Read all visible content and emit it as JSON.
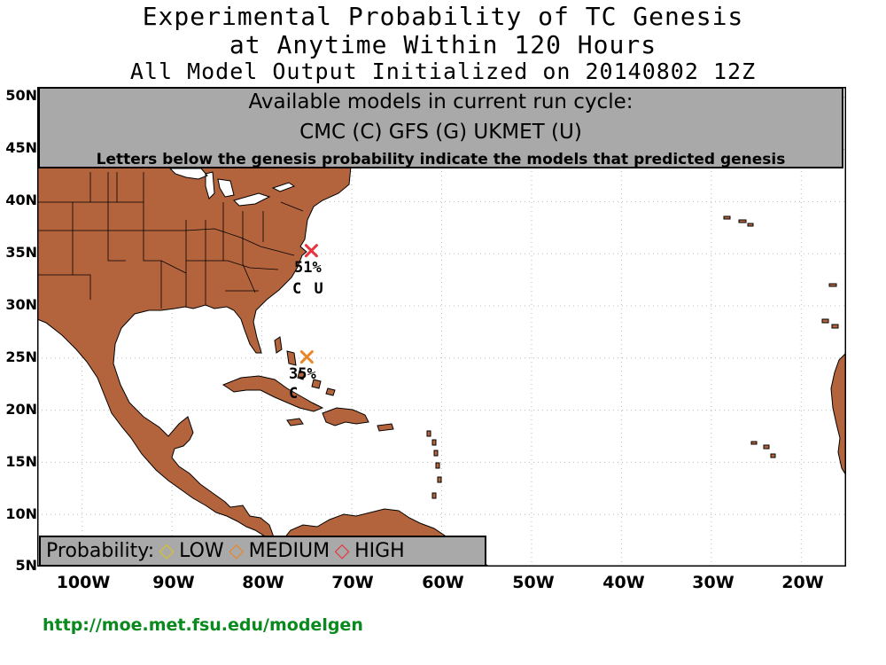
{
  "title": {
    "line1": "Experimental Probability of TC Genesis",
    "line2": "at Anytime Within 120 Hours",
    "line3": "All Model Output Initialized on 20140802 12Z"
  },
  "info_box": {
    "heading": "Available models in current run cycle:",
    "models": "CMC (C) GFS (G)  UKMET (U)",
    "note": "Letters below the genesis probability indicate the models that predicted genesis"
  },
  "axes": {
    "lat_labels": [
      "50N",
      "45N",
      "40N",
      "35N",
      "30N",
      "25N",
      "20N",
      "15N",
      "10N",
      "5N"
    ],
    "lon_labels": [
      "100W",
      "90W",
      "80W",
      "70W",
      "60W",
      "50W",
      "40W",
      "30W",
      "20W"
    ],
    "lat_range": [
      5,
      51
    ],
    "lon_range": [
      -105,
      -15
    ],
    "grid": "dotted"
  },
  "genesis_points": [
    {
      "lon": -74.5,
      "lat": 35.3,
      "probability": "51%",
      "models": "C U",
      "category": "HIGH",
      "color": "#e8343e"
    },
    {
      "lon": -75.0,
      "lat": 25.1,
      "probability": "35%",
      "models": "C",
      "category": "MEDIUM",
      "color": "#e8862a"
    }
  ],
  "legend": {
    "label": "Probability:",
    "items": [
      {
        "label": "LOW",
        "color": "#d8c428",
        "icon": "diamond-icon"
      },
      {
        "label": "MEDIUM",
        "color": "#e8862a",
        "icon": "diamond-icon"
      },
      {
        "label": "HIGH",
        "color": "#e8343e",
        "icon": "diamond-icon"
      }
    ]
  },
  "colors": {
    "land": "#b4643c",
    "ocean": "#ffffff",
    "info_box": "#a9a9a9",
    "url": "#0a8a1e"
  },
  "footer_url": "http://moe.met.fsu.edu/modelgen"
}
